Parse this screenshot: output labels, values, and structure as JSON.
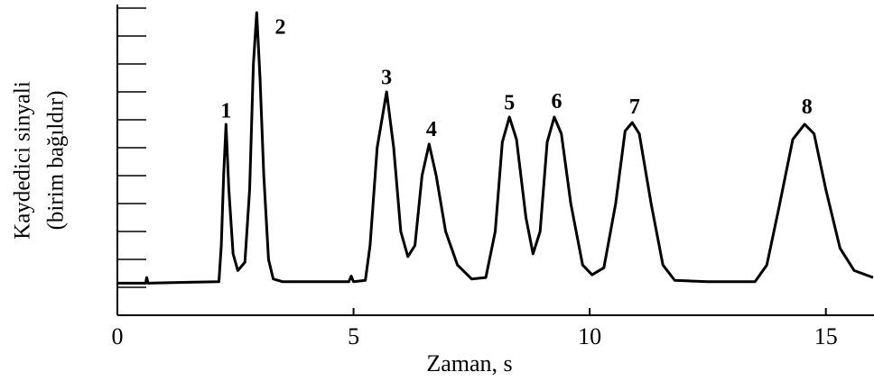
{
  "chart_data": {
    "type": "line",
    "xlabel": "Zaman, s",
    "ylabel": [
      "Kaydedici sinyali",
      "(birim bağıldır)"
    ],
    "xlim": [
      0,
      16
    ],
    "ylim": [
      0,
      11
    ],
    "xticks": [
      0,
      5,
      10,
      15
    ],
    "yticks": [
      1,
      2,
      3,
      4,
      5,
      6,
      7,
      8,
      9,
      10,
      11
    ],
    "color": "#000000",
    "x": [
      0,
      0.6,
      0.62,
      0.65,
      1.5,
      2.15,
      2.2,
      2.25,
      2.3,
      2.36,
      2.45,
      2.55,
      2.7,
      2.8,
      2.88,
      2.95,
      3.02,
      3.1,
      3.2,
      3.3,
      3.5,
      4.9,
      4.95,
      5.0,
      5.25,
      5.35,
      5.5,
      5.7,
      5.85,
      6.0,
      6.15,
      6.3,
      6.45,
      6.6,
      6.75,
      6.95,
      7.2,
      7.5,
      7.8,
      8.0,
      8.15,
      8.3,
      8.45,
      8.65,
      8.8,
      8.95,
      9.1,
      9.25,
      9.4,
      9.6,
      9.85,
      10.05,
      10.3,
      10.55,
      10.75,
      10.9,
      11.05,
      11.3,
      11.55,
      11.8,
      12.5,
      13.5,
      13.75,
      14.0,
      14.3,
      14.55,
      14.75,
      15.0,
      15.3,
      15.6,
      16.0
    ],
    "values": [
      1.15,
      1.15,
      1.35,
      1.15,
      1.18,
      1.2,
      2.5,
      5.0,
      6.84,
      4.5,
      2.2,
      1.6,
      1.9,
      4.5,
      9.0,
      10.84,
      8.5,
      5.0,
      2.0,
      1.3,
      1.2,
      1.2,
      1.4,
      1.2,
      1.25,
      2.5,
      6.0,
      8.0,
      6.0,
      3.0,
      2.1,
      2.5,
      5.0,
      6.13,
      5.0,
      3.0,
      1.8,
      1.3,
      1.35,
      3.0,
      6.2,
      7.1,
      6.3,
      3.5,
      2.2,
      3.0,
      6.2,
      7.1,
      6.5,
      4.0,
      1.8,
      1.45,
      1.7,
      4.0,
      6.6,
      6.9,
      6.5,
      4.0,
      1.8,
      1.25,
      1.2,
      1.2,
      1.8,
      3.8,
      6.3,
      6.84,
      6.5,
      4.5,
      2.4,
      1.6,
      1.35
    ],
    "annotations": [
      {
        "text": "1",
        "x": 2.3,
        "y": 7.26
      },
      {
        "text": "2",
        "x": 3.45,
        "y": 10.26
      },
      {
        "text": "3",
        "x": 5.7,
        "y": 8.45
      },
      {
        "text": "4",
        "x": 6.65,
        "y": 6.6
      },
      {
        "text": "5",
        "x": 8.3,
        "y": 7.55
      },
      {
        "text": "6",
        "x": 9.3,
        "y": 7.6
      },
      {
        "text": "7",
        "x": 10.95,
        "y": 7.4
      },
      {
        "text": "8",
        "x": 14.6,
        "y": 7.4
      }
    ]
  }
}
